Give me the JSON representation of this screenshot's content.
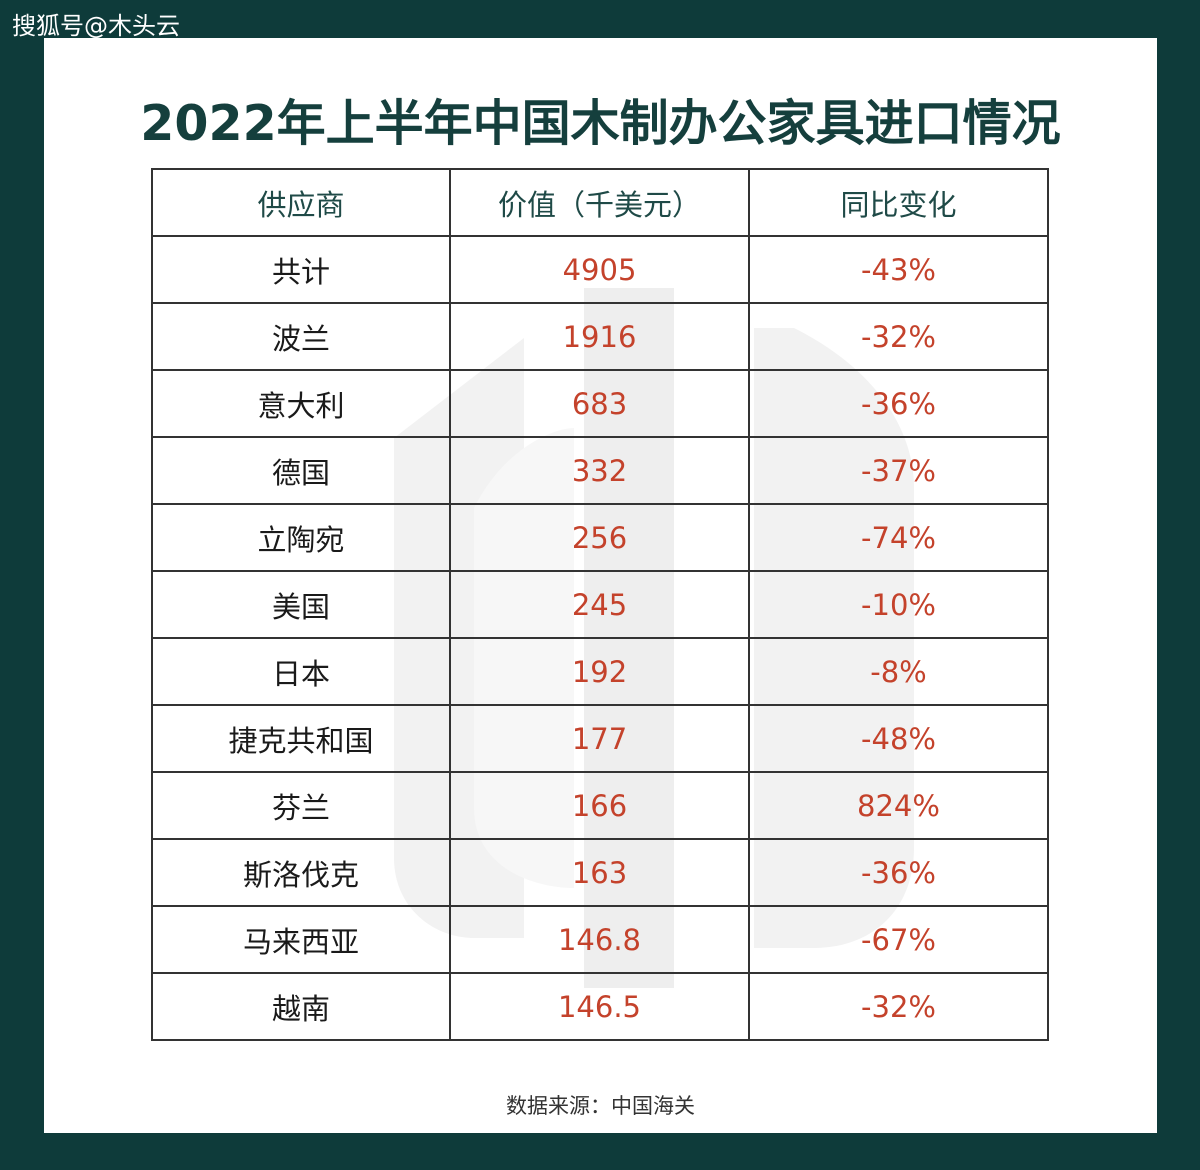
{
  "watermark": "搜狐号@木头云",
  "title": "2022年上半年中国木制办公家具进口情况",
  "table": {
    "headers": [
      "供应商",
      "价值（千美元）",
      "同比变化"
    ],
    "rows": [
      {
        "supplier": "共计",
        "value": "4905",
        "change": "-43%"
      },
      {
        "supplier": "波兰",
        "value": "1916",
        "change": "-32%"
      },
      {
        "supplier": "意大利",
        "value": "683",
        "change": "-36%"
      },
      {
        "supplier": "德国",
        "value": "332",
        "change": "-37%"
      },
      {
        "supplier": "立陶宛",
        "value": "256",
        "change": "-74%"
      },
      {
        "supplier": "美国",
        "value": "245",
        "change": "-10%"
      },
      {
        "supplier": "日本",
        "value": "192",
        "change": "-8%"
      },
      {
        "supplier": "捷克共和国",
        "value": "177",
        "change": "-48%"
      },
      {
        "supplier": "芬兰",
        "value": "166",
        "change": "824%"
      },
      {
        "supplier": "斯洛伐克",
        "value": "163",
        "change": "-36%"
      },
      {
        "supplier": "马来西亚",
        "value": "146.8",
        "change": "-67%"
      },
      {
        "supplier": "越南",
        "value": "146.5",
        "change": "-32%"
      }
    ]
  },
  "source": "数据来源：中国海关",
  "colors": {
    "background": "#0e3b3a",
    "title": "#153f3d",
    "value_text": "#c4422b"
  }
}
